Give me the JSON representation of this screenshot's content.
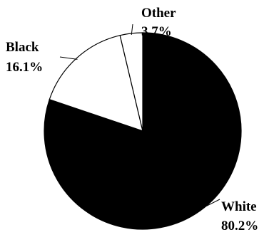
{
  "chart_data": {
    "type": "pie",
    "title": "",
    "slices": [
      {
        "name": "White",
        "value": 80.2,
        "value_label": "80.2%",
        "color": "#000000"
      },
      {
        "name": "Black",
        "value": 16.1,
        "value_label": "16.1%",
        "color": "#ffffff"
      },
      {
        "name": "Other",
        "value": 3.7,
        "value_label": "3.7%",
        "color": "#ffffff"
      }
    ],
    "start": "12 o'clock",
    "direction": "clockwise",
    "outline_color": "#000000",
    "legend": "none",
    "labels": "outside with leader lines"
  }
}
